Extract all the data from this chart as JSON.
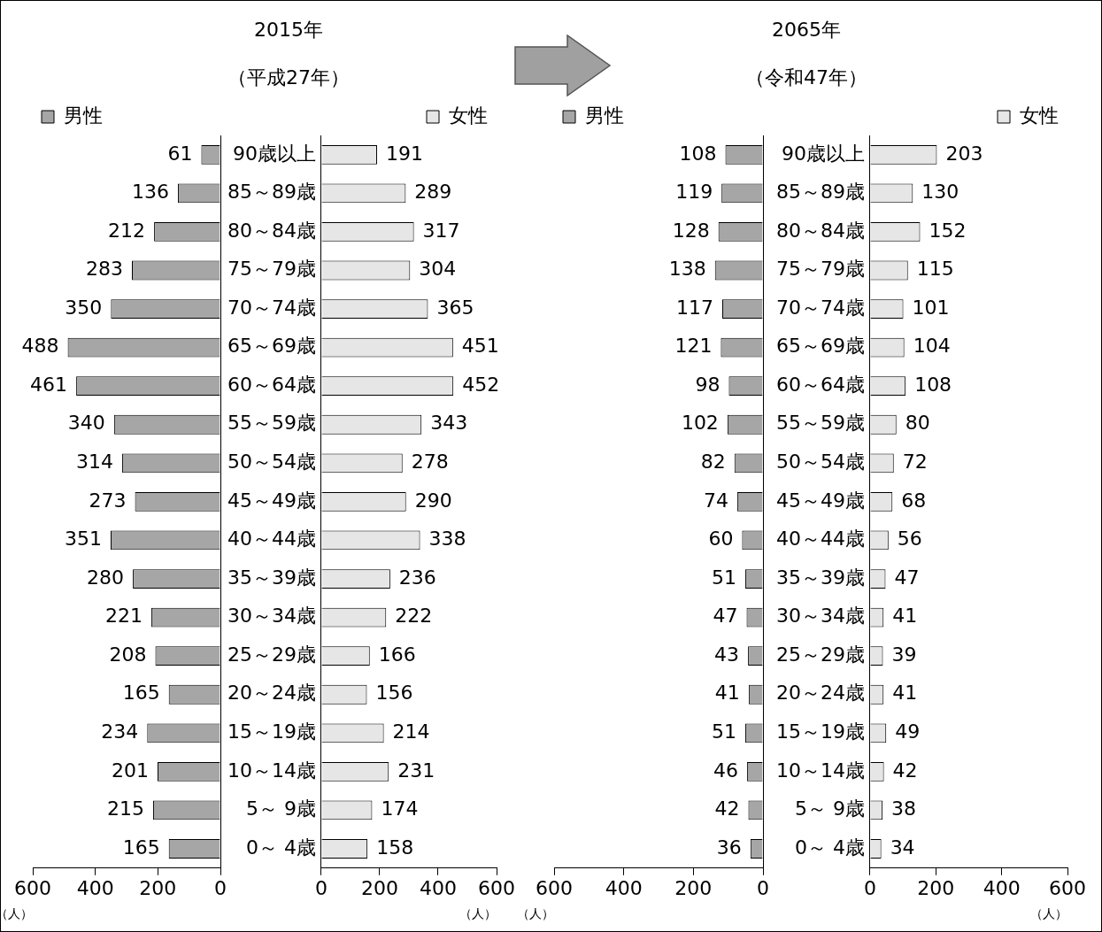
{
  "chart_data": [
    {
      "type": "bar",
      "orientation": "horizontal",
      "xlabel": "（人）",
      "categories": [
        null,
        null,
        null,
        null,
        null,
        null,
        null,
        null,
        null,
        null,
        null,
        null,
        null,
        null,
        null,
        null,
        null,
        null,
        null
      ],
      "series": [
        {
          "name": "男性",
          "color": "#a6a6a6",
          "values": [
            61,
            136,
            212,
            283,
            350,
            488,
            461,
            340,
            314,
            273,
            351,
            280,
            221,
            208,
            165,
            234,
            201,
            215,
            165
          ]
        }
      ],
      "xlim": [
        600,
        0
      ],
      "xticks": [
        0,
        200,
        400,
        600
      ],
      "tick_labels": "x",
      "data_labels": true,
      "grid": false,
      "legend": "top left"
    },
    {
      "type": "bar",
      "orientation": "horizontal",
      "xlabel": "（人）",
      "categories": [
        "90歳以上",
        "85～89歳",
        "80～84歳",
        "75～79歳",
        "70～74歳",
        "65～69歳",
        "60～64歳",
        "55～59歳",
        "50～54歳",
        "45～49歳",
        "40～44歳",
        "35～39歳",
        "30～34歳",
        "25～29歳",
        "20～24歳",
        "15～19歳",
        "10～14歳",
        "5～ 9歳",
        "0～ 4歳"
      ],
      "title": "2015年",
      "subtitle": "（平成27年）",
      "series": [
        {
          "name": "女性",
          "color": "#e6e6e6",
          "values": [
            191,
            289,
            317,
            304,
            365,
            451,
            452,
            343,
            278,
            290,
            338,
            236,
            222,
            166,
            156,
            214,
            231,
            174,
            158
          ]
        }
      ],
      "xlim": [
        0,
        600
      ],
      "xticks": [
        0,
        200,
        400,
        600
      ],
      "data_labels": true,
      "grid": false,
      "legend": "top right"
    },
    {
      "type": "bar",
      "orientation": "horizontal",
      "xlabel": "（人）",
      "categories": [
        null,
        null,
        null,
        null,
        null,
        null,
        null,
        null,
        null,
        null,
        null,
        null,
        null,
        null,
        null,
        null,
        null,
        null,
        null
      ],
      "series": [
        {
          "name": "男性",
          "color": "#a6a6a6",
          "values": [
            108,
            119,
            128,
            138,
            117,
            121,
            98,
            102,
            82,
            74,
            60,
            51,
            47,
            43,
            41,
            51,
            46,
            42,
            36
          ]
        }
      ],
      "xlim": [
        600,
        0
      ],
      "xticks": [
        0,
        200,
        400,
        600
      ],
      "tick_labels": "x",
      "data_labels": true,
      "grid": false,
      "legend": "top left"
    },
    {
      "type": "bar",
      "orientation": "horizontal",
      "xlabel": "（人）",
      "categories": [
        "90歳以上",
        "85～89歳",
        "80～84歳",
        "75～79歳",
        "70～74歳",
        "65～69歳",
        "60～64歳",
        "55～59歳",
        "50～54歳",
        "45～49歳",
        "40～44歳",
        "35～39歳",
        "30～34歳",
        "25～29歳",
        "20～24歳",
        "15～19歳",
        "10～14歳",
        "5～ 9歳",
        "0～ 4歳"
      ],
      "title": "2065年",
      "subtitle": "（令和47年）",
      "series": [
        {
          "name": "女性",
          "color": "#e6e6e6",
          "values": [
            203,
            130,
            152,
            115,
            101,
            104,
            108,
            80,
            72,
            68,
            56,
            47,
            41,
            39,
            41,
            49,
            42,
            38,
            34
          ]
        }
      ],
      "xlim": [
        0,
        600
      ],
      "xticks": [
        0,
        200,
        400,
        600
      ],
      "data_labels": true,
      "grid": false,
      "legend": "top right"
    }
  ]
}
